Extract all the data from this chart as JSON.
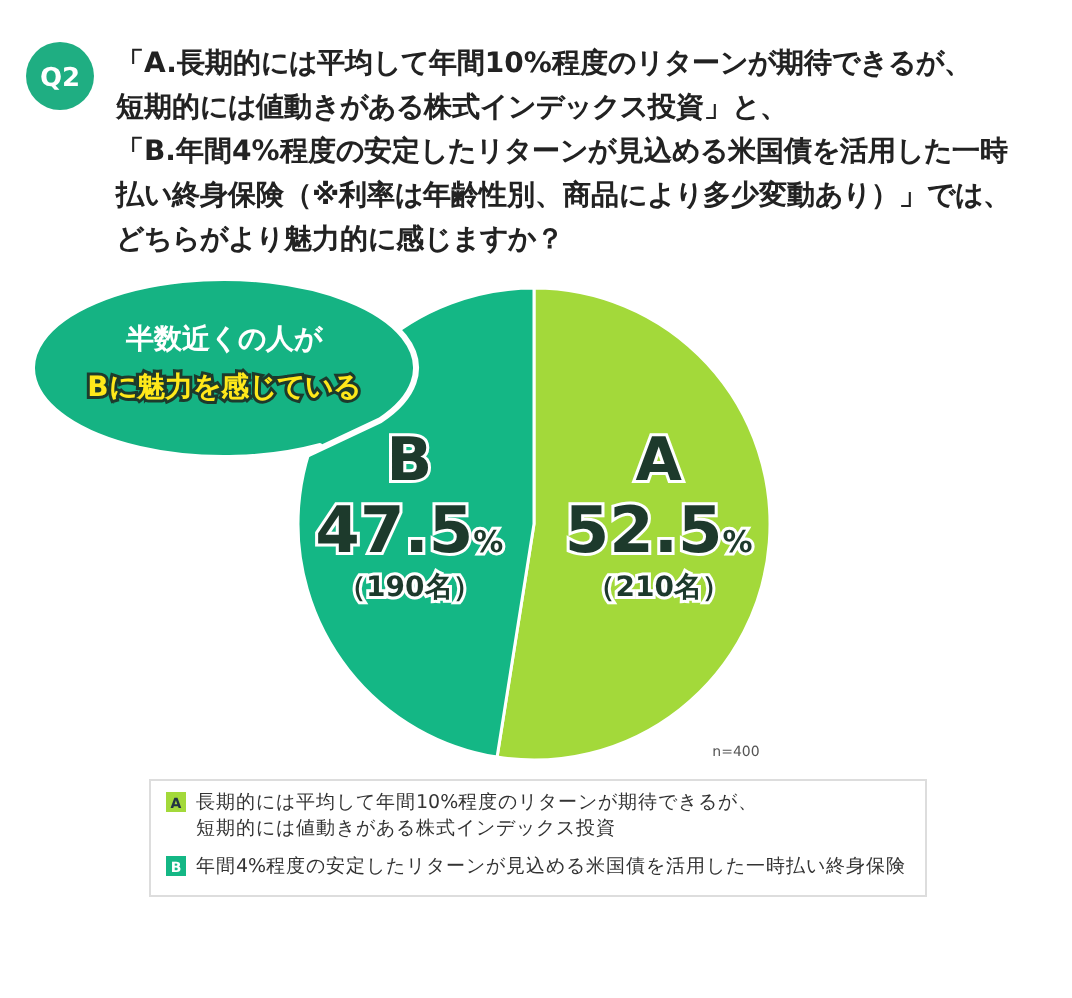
{
  "chart_data": {
    "type": "pie",
    "title": "「A.長期的には平均して年間10%程度のリターンが期待できるが、短期的には値動きがある株式インデックス投資」と、「B.年間4%程度の安定したリターンが見込める米国債を活用した一時払い終身保険（※利率は年齢性別、商品により多少変動あり）」では、どちらがより魅力的に感じますか？",
    "categories": [
      "A",
      "B"
    ],
    "values": [
      52.5,
      47.5
    ],
    "colors": [
      "#a3d93a",
      "#14b785"
    ],
    "value_labels": [
      "52.5%\n（210名）",
      "47.5%\n（190名）"
    ],
    "annotations": [
      "Q2",
      "半数近くの人が\nBに魅力を感じている",
      "n=400",
      "長期的には平均して年間10%程度のリターンが期待できるが、短期的には値動きがある株式インデックス投資",
      "年間4%程度の安定したリターンが見込める米国債を活用した一時払い終身保険"
    ]
  }
}
